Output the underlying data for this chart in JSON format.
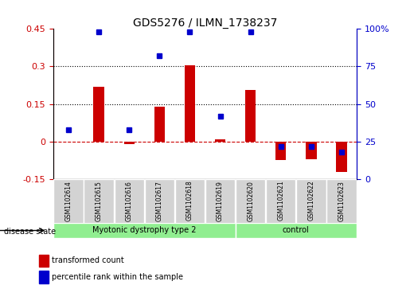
{
  "title": "GDS5276 / ILMN_1738237",
  "samples": [
    "GSM1102614",
    "GSM1102615",
    "GSM1102616",
    "GSM1102617",
    "GSM1102618",
    "GSM1102619",
    "GSM1102620",
    "GSM1102621",
    "GSM1102622",
    "GSM1102623"
  ],
  "transformed_count": [
    0.0,
    0.22,
    -0.01,
    0.14,
    0.305,
    0.01,
    0.205,
    -0.075,
    -0.07,
    -0.12
  ],
  "percentile_rank": [
    33,
    98,
    33,
    82,
    98,
    42,
    98,
    22,
    22,
    18
  ],
  "group1_label": "Myotonic dystrophy type 2",
  "group1_samples": 6,
  "group2_label": "control",
  "group2_samples": 4,
  "disease_state_label": "disease state",
  "left_color": "#cc0000",
  "right_color": "#0000cc",
  "bar_color": "#cc0000",
  "dot_color": "#0000cc",
  "ylim_left": [
    -0.15,
    0.45
  ],
  "ylim_right": [
    0,
    100
  ],
  "yticks_left": [
    -0.15,
    0.0,
    0.15,
    0.3,
    0.45
  ],
  "yticks_right": [
    0,
    25,
    50,
    75,
    100
  ],
  "hlines": [
    0.15,
    0.3
  ],
  "legend_bar_label": "transformed count",
  "legend_dot_label": "percentile rank within the sample",
  "group1_color": "#90ee90",
  "group2_color": "#90ee90",
  "bg_color": "#d3d3d3"
}
